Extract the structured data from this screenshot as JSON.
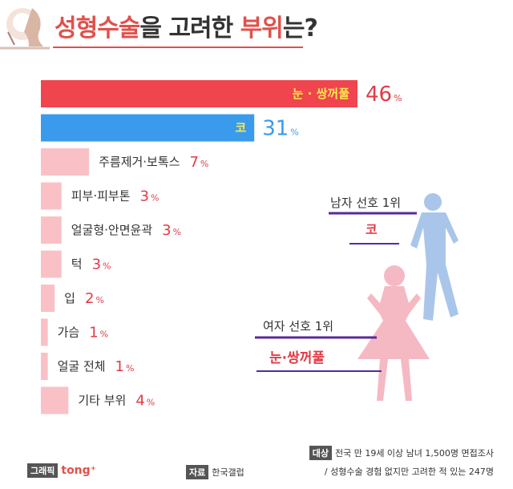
{
  "title": {
    "part1": "성형수술",
    "part2": "을 고려한 ",
    "part3": "부위",
    "part4": "는?"
  },
  "chart_data": {
    "type": "bar",
    "orientation": "horizontal",
    "categories": [
      "눈 · 쌍꺼풀",
      "코",
      "주름제거·보톡스",
      "피부·피부톤",
      "얼굴형·안면윤곽",
      "턱",
      "입",
      "가슴",
      "얼굴 전체",
      "기타 부위"
    ],
    "values": [
      46,
      31,
      7,
      3,
      3,
      3,
      2,
      1,
      1,
      4
    ],
    "unit": "%",
    "bar_colors": [
      "#f0444e",
      "#3a9bec",
      "#f9c1c6",
      "#f9c1c6",
      "#f9c1c6",
      "#f9c1c6",
      "#f9c1c6",
      "#f9c1c6",
      "#f9c1c6",
      "#f9c1c6"
    ],
    "value_colors": [
      "#e23a45",
      "#3a9bec",
      "#e23a45",
      "#e23a45",
      "#e23a45",
      "#e23a45",
      "#e23a45",
      "#e23a45",
      "#e23a45",
      "#e23a45"
    ],
    "xlim": [
      0,
      50
    ]
  },
  "annotations": {
    "male_label": "남자 선호 1위",
    "male_value": "코",
    "female_label": "여자 선호 1위",
    "female_value": "눈·쌍꺼풀"
  },
  "footer": {
    "survey_tag": "대상",
    "survey_text": "전국 만 19세 이상 남녀 1,500명 면접조사",
    "survey_sub": "/ 성형수술 경험 없지만 고려한 적 있는 247명",
    "graphic_tag": "그래픽",
    "graphic_brand": "tong⁺",
    "source_tag": "자료",
    "source_text": "한국갤럽"
  },
  "colors": {
    "accent": "#e0514b",
    "male": "#a9c6ea",
    "female": "#f5b9c4",
    "purple": "#5a2a9a"
  }
}
